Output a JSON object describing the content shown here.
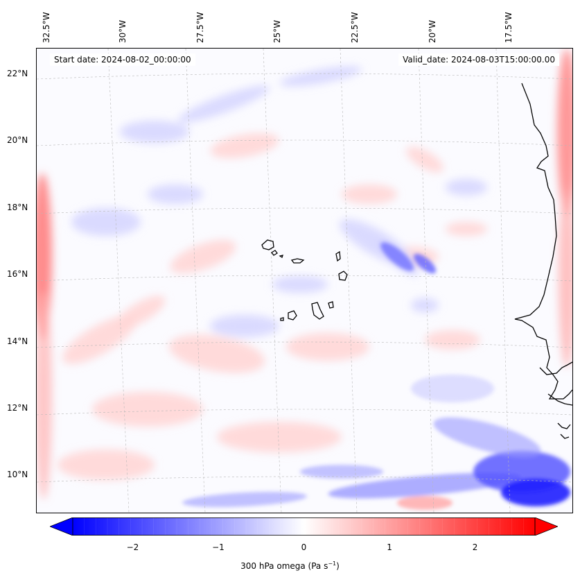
{
  "map": {
    "variable_label": "300 hPa omega (Pa s",
    "variable_unit_sup": "−1",
    "variable_label_end": ")",
    "start_date": "Start date: 2024-08-02_00:00:00",
    "valid_date": "Valid_date: 2024-08-03T15:00:00.00",
    "lon_labels": [
      "32.5°W",
      "30°W",
      "27.5°W",
      "25°W",
      "22.5°W",
      "20°W",
      "17.5°W"
    ],
    "lat_labels": [
      "22°N",
      "20°N",
      "18°N",
      "16°N",
      "14°N",
      "12°N",
      "10°N"
    ],
    "lon_values": [
      -32.5,
      -30,
      -27.5,
      -25,
      -22.5,
      -20,
      -17.5
    ],
    "lat_values": [
      22,
      20,
      18,
      16,
      14,
      12,
      10
    ],
    "extent": {
      "lon_min": -32.7,
      "lon_max": -15.6,
      "lat_min": 8.9,
      "lat_max": 22.8
    },
    "region": "Cape Verde / West Africa coast"
  },
  "chart_data": {
    "type": "heatmap",
    "title": "",
    "colorbar_label": "300 hPa omega (Pa s−1)",
    "colorbar_ticks": [
      -2,
      -1,
      0,
      1,
      2
    ],
    "colorbar_tick_labels": [
      "−2",
      "−1",
      "0",
      "1",
      "2"
    ],
    "value_range": [
      -2.7,
      2.7
    ],
    "colormap": "bwr",
    "colors": {
      "negative": "#0000ff",
      "zero": "#ffffff",
      "positive": "#ff0000"
    }
  }
}
